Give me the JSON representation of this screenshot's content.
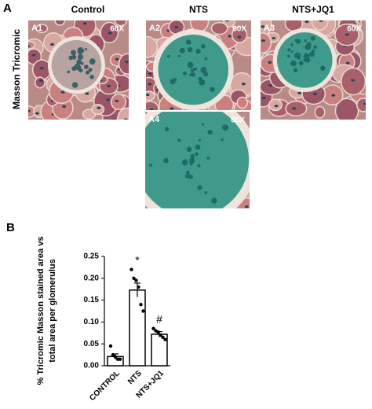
{
  "figure_a": {
    "label": "A",
    "row_label": "Masson Tricromic",
    "columns": [
      "Control",
      "NTS",
      "NTS+JQ1"
    ],
    "images": [
      {
        "label": "A1",
        "magnification": "60X"
      },
      {
        "label": "A2",
        "magnification": "60X"
      },
      {
        "label": "A3",
        "magnification": "60X"
      },
      {
        "label": "A4",
        "magnification": "60X"
      }
    ]
  },
  "panel_b_label": "B",
  "chart_data": {
    "type": "bar",
    "ylabel_lines": [
      "% Tricromic Masson stained area vs",
      "total area per glomerulus"
    ],
    "categories": [
      "CONTROL",
      "NTS",
      "NTS+JQ1"
    ],
    "values": [
      0.021,
      0.173,
      0.072
    ],
    "errors": [
      0.006,
      0.016,
      0.006
    ],
    "points": [
      [
        0.045,
        0.025,
        0.02,
        0.015,
        0.015
      ],
      [
        0.22,
        0.2,
        0.195,
        0.18,
        0.14,
        0.125
      ],
      [
        0.085,
        0.08,
        0.077,
        0.07,
        0.065,
        0.06
      ]
    ],
    "annotations": [
      {
        "category": "NTS",
        "text": "*"
      },
      {
        "category": "NTS+JQ1",
        "text": "#"
      }
    ],
    "bar_color": "#ffffff",
    "edge_color": "#000000",
    "point_color": "#000000",
    "ylim": [
      0,
      0.25
    ],
    "yticks": [
      {
        "value": 0,
        "label": "0.00"
      },
      0.05,
      {
        "value": 0.1,
        "label": "0.10"
      },
      0.15,
      {
        "value": 0.2,
        "label": "0.20"
      },
      0.25
    ]
  }
}
